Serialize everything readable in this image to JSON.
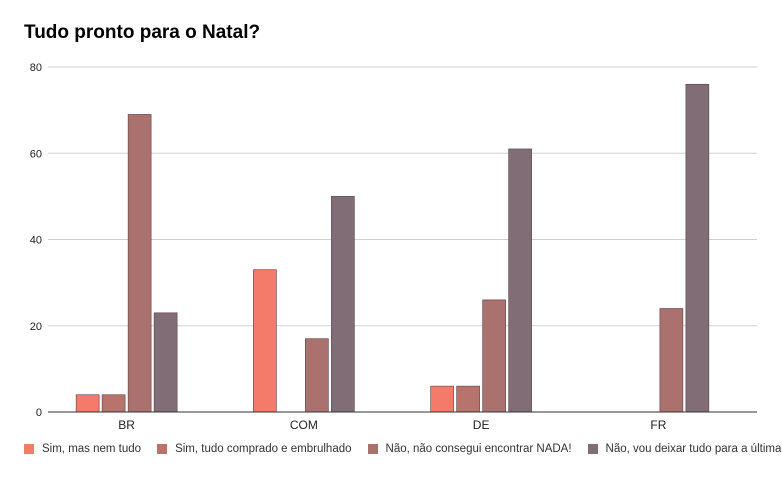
{
  "chart_data": {
    "type": "bar",
    "title": "Tudo pronto para o Natal?",
    "categories": [
      "BR",
      "COM",
      "DE",
      "FR"
    ],
    "series": [
      {
        "name": "Sim, mas nem tudo",
        "color": "#f47a69",
        "values": [
          4,
          33,
          6,
          0
        ]
      },
      {
        "name": "Sim, tudo comprado e embrulhado",
        "color": "#b8746c",
        "values": [
          4,
          0,
          6,
          0
        ]
      },
      {
        "name": "Não, não consegui encontrar NADA!",
        "color": "#ab716f",
        "values": [
          69,
          17,
          26,
          24
        ]
      },
      {
        "name": "Não, vou deixar tudo para a última hora",
        "color": "#816d75",
        "values": [
          23,
          50,
          61,
          76
        ]
      }
    ],
    "yticks": [
      "0",
      "20",
      "40",
      "60",
      "80"
    ],
    "ylim": [
      0,
      80
    ],
    "xlabel": "",
    "ylabel": "",
    "grid": true,
    "legend_position": "bottom"
  }
}
